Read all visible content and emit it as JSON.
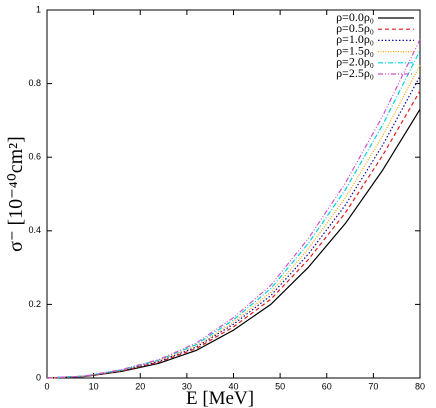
{
  "chart_data": {
    "type": "line",
    "x_label": "E [MeV]",
    "y_label": "σ⁻ [10⁻⁴⁰cm²]",
    "x": [
      0,
      8,
      16,
      24,
      32,
      40,
      48,
      56,
      64,
      72,
      80
    ],
    "series": [
      {
        "name": "ρ=0.0ρ₀",
        "color": "#000000",
        "dash": "solid",
        "values": [
          0,
          0.004,
          0.018,
          0.04,
          0.075,
          0.13,
          0.2,
          0.3,
          0.42,
          0.565,
          0.73
        ]
      },
      {
        "name": "ρ=0.5ρ₀",
        "color": "#e41a1c",
        "dash": "dashed",
        "values": [
          0,
          0.004,
          0.019,
          0.043,
          0.08,
          0.139,
          0.214,
          0.321,
          0.449,
          0.605,
          0.78
        ]
      },
      {
        "name": "ρ=1.0ρ₀",
        "color": "#1010a0",
        "dash": "dotted",
        "values": [
          0,
          0.005,
          0.02,
          0.045,
          0.084,
          0.146,
          0.224,
          0.336,
          0.47,
          0.633,
          0.82
        ]
      },
      {
        "name": "ρ=1.5ρ₀",
        "color": "#ffa500",
        "dash": "fine-dotted",
        "values": [
          0,
          0.005,
          0.021,
          0.047,
          0.087,
          0.151,
          0.233,
          0.35,
          0.49,
          0.658,
          0.85
        ]
      },
      {
        "name": "ρ=2.0ρ₀",
        "color": "#00d0e0",
        "dash": "dash-dot",
        "values": [
          0,
          0.005,
          0.022,
          0.049,
          0.091,
          0.158,
          0.243,
          0.365,
          0.512,
          0.688,
          0.89
        ]
      },
      {
        "name": "ρ=2.5ρ₀",
        "color": "#d050d0",
        "dash": "dash-dot-dot",
        "values": [
          0,
          0.005,
          0.023,
          0.05,
          0.095,
          0.164,
          0.252,
          0.378,
          0.53,
          0.712,
          0.92
        ]
      }
    ],
    "xlim": [
      0,
      80
    ],
    "xticks": [
      0,
      10,
      20,
      30,
      40,
      50,
      60,
      70,
      80
    ],
    "ylim": [
      0,
      1
    ],
    "yticks": [
      0,
      0.2,
      0.4,
      0.6,
      0.8,
      1
    ],
    "legend": "upper right"
  }
}
